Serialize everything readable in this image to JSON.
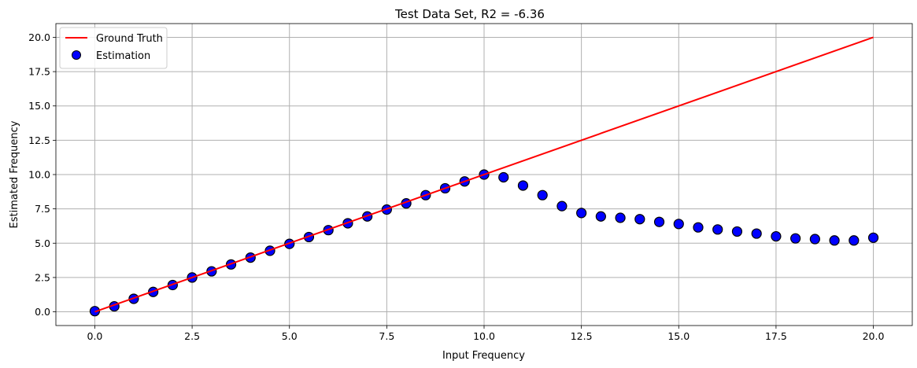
{
  "chart_data": {
    "type": "line+scatter",
    "title": "Test Data Set, R2 = -6.36",
    "xlabel": "Input Frequency",
    "ylabel": "Estimated Frequency",
    "xlim": [
      -1.0,
      21.0
    ],
    "ylim": [
      -1.0,
      21.0
    ],
    "xticks": [
      0.0,
      2.5,
      5.0,
      7.5,
      10.0,
      12.5,
      15.0,
      17.5,
      20.0
    ],
    "yticks": [
      0.0,
      2.5,
      5.0,
      7.5,
      10.0,
      12.5,
      15.0,
      17.5,
      20.0
    ],
    "xtick_labels": [
      "0.0",
      "2.5",
      "5.0",
      "7.5",
      "10.0",
      "12.5",
      "15.0",
      "17.5",
      "20.0"
    ],
    "ytick_labels": [
      "0.0",
      "2.5",
      "5.0",
      "7.5",
      "10.0",
      "12.5",
      "15.0",
      "17.5",
      "20.0"
    ],
    "grid": true,
    "legend_position": "top-left",
    "series": [
      {
        "name": "Ground Truth",
        "kind": "line",
        "color": "#ff0000",
        "x": [
          0.0,
          20.0
        ],
        "y": [
          0.0,
          20.0
        ]
      },
      {
        "name": "Estimation",
        "kind": "scatter",
        "color": "#0000ff",
        "edgecolor": "#000000",
        "x": [
          0.0,
          0.5,
          1.0,
          1.5,
          2.0,
          2.5,
          3.0,
          3.5,
          4.0,
          4.5,
          5.0,
          5.5,
          6.0,
          6.5,
          7.0,
          7.5,
          8.0,
          8.5,
          9.0,
          9.5,
          10.0,
          10.5,
          11.0,
          11.5,
          12.0,
          12.5,
          13.0,
          13.5,
          14.0,
          14.5,
          15.0,
          15.5,
          16.0,
          16.5,
          17.0,
          17.5,
          18.0,
          18.5,
          19.0,
          19.5,
          20.0
        ],
        "y": [
          0.05,
          0.4,
          0.95,
          1.45,
          1.95,
          2.5,
          2.95,
          3.45,
          3.95,
          4.45,
          4.95,
          5.45,
          5.95,
          6.45,
          6.95,
          7.45,
          7.9,
          8.5,
          9.0,
          9.5,
          10.0,
          9.8,
          9.2,
          8.5,
          7.7,
          7.2,
          6.95,
          6.85,
          6.75,
          6.55,
          6.4,
          6.15,
          6.0,
          5.85,
          5.7,
          5.5,
          5.35,
          5.3,
          5.2,
          5.2,
          5.4
        ]
      }
    ]
  }
}
